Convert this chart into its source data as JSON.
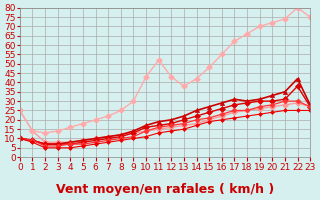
{
  "background_color": "#d6f0f0",
  "grid_color": "#aaaaaa",
  "title": "",
  "xlabel": "Vent moyen/en rafales ( km/h )",
  "xlabel_color": "#cc0000",
  "xlabel_fontsize": 9,
  "xlim": [
    0,
    23
  ],
  "ylim": [
    0,
    80
  ],
  "yticks": [
    0,
    5,
    10,
    15,
    20,
    25,
    30,
    35,
    40,
    45,
    50,
    55,
    60,
    65,
    70,
    75,
    80
  ],
  "xticks": [
    0,
    1,
    2,
    3,
    4,
    5,
    6,
    7,
    8,
    9,
    10,
    11,
    12,
    13,
    14,
    15,
    16,
    17,
    18,
    19,
    20,
    21,
    22,
    23
  ],
  "line1": {
    "x": [
      0,
      1,
      2,
      3,
      4,
      5,
      6,
      7,
      8,
      9,
      10,
      11,
      12,
      13,
      14,
      15,
      16,
      17,
      18,
      19,
      20,
      21,
      22,
      23
    ],
    "y": [
      25,
      14,
      8,
      8,
      8,
      9,
      10,
      11,
      12,
      13,
      14,
      15,
      16,
      17,
      18,
      20,
      22,
      24,
      25,
      26,
      27,
      28,
      29,
      27
    ],
    "color": "#ff9999",
    "marker": "D",
    "markersize": 3,
    "linewidth": 1.0
  },
  "line2": {
    "x": [
      0,
      1,
      2,
      3,
      4,
      5,
      6,
      7,
      8,
      9,
      10,
      11,
      12,
      13,
      14,
      15,
      16,
      17,
      18,
      19,
      20,
      21,
      22,
      23
    ],
    "y": [
      25,
      14,
      13,
      14,
      16,
      18,
      20,
      22,
      25,
      30,
      43,
      52,
      43,
      38,
      42,
      48,
      55,
      62,
      66,
      70,
      72,
      74,
      80,
      75
    ],
    "color": "#ffaaaa",
    "marker": "D",
    "markersize": 3,
    "linewidth": 1.0
  },
  "line3": {
    "x": [
      0,
      1,
      2,
      3,
      4,
      5,
      6,
      7,
      8,
      9,
      10,
      11,
      12,
      13,
      14,
      15,
      16,
      17,
      18,
      19,
      20,
      21,
      22,
      23
    ],
    "y": [
      10,
      9,
      7,
      7,
      8,
      9,
      10,
      11,
      12,
      14,
      17,
      19,
      20,
      22,
      25,
      27,
      29,
      31,
      30,
      31,
      33,
      35,
      42,
      28
    ],
    "color": "#cc0000",
    "marker": "^",
    "markersize": 3,
    "linewidth": 1.2
  },
  "line4": {
    "x": [
      0,
      1,
      2,
      3,
      4,
      5,
      6,
      7,
      8,
      9,
      10,
      11,
      12,
      13,
      14,
      15,
      16,
      17,
      18,
      19,
      20,
      21,
      22,
      23
    ],
    "y": [
      10,
      9,
      7,
      7,
      7,
      8,
      9,
      10,
      11,
      13,
      16,
      17,
      18,
      20,
      22,
      24,
      26,
      28,
      29,
      30,
      30,
      31,
      38,
      27
    ],
    "color": "#dd0000",
    "marker": "D",
    "markersize": 3,
    "linewidth": 1.0
  },
  "line5": {
    "x": [
      0,
      1,
      2,
      3,
      4,
      5,
      6,
      7,
      8,
      9,
      10,
      11,
      12,
      13,
      14,
      15,
      16,
      17,
      18,
      19,
      20,
      21,
      22,
      23
    ],
    "y": [
      10,
      9,
      6,
      6,
      7,
      7,
      8,
      9,
      10,
      11,
      14,
      16,
      17,
      18,
      20,
      21,
      23,
      25,
      25,
      27,
      28,
      30,
      30,
      27
    ],
    "color": "#ff3333",
    "marker": "D",
    "markersize": 2.5,
    "linewidth": 0.9
  },
  "line6": {
    "x": [
      0,
      1,
      2,
      3,
      4,
      5,
      6,
      7,
      8,
      9,
      10,
      11,
      12,
      13,
      14,
      15,
      16,
      17,
      18,
      19,
      20,
      21,
      22,
      23
    ],
    "y": [
      10,
      8,
      5,
      5,
      5,
      6,
      7,
      8,
      9,
      10,
      11,
      13,
      14,
      15,
      17,
      19,
      20,
      21,
      22,
      23,
      24,
      25,
      25,
      25
    ],
    "color": "#ee0000",
    "marker": "D",
    "markersize": 2,
    "linewidth": 0.8
  },
  "arrow_color": "#cc0000",
  "tick_color": "#cc0000",
  "tick_fontsize": 6.5
}
